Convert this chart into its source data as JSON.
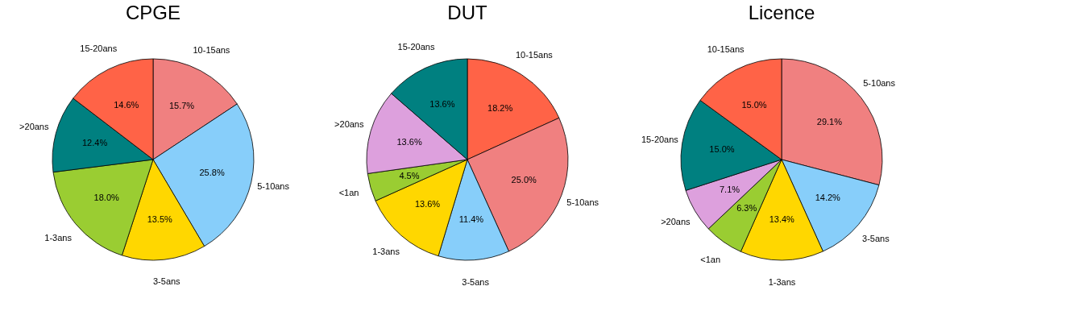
{
  "chart_data": [
    {
      "type": "pie",
      "title": "CPGE",
      "categories": [
        "10-15ans",
        "5-10ans",
        "3-5ans",
        "1-3ans",
        ">20ans",
        "15-20ans"
      ],
      "values": [
        15.7,
        25.8,
        13.5,
        18.0,
        12.4,
        14.6
      ],
      "colors": [
        "#f08080",
        "#87cefa",
        "#ffd700",
        "#9acd32",
        "#008080",
        "#ff6347"
      ],
      "value_labels": [
        "15.7%",
        "25.8%",
        "13.5%",
        "18.0%",
        "12.4%",
        "14.6%"
      ]
    },
    {
      "type": "pie",
      "title": "DUT",
      "categories": [
        "10-15ans",
        "5-10ans",
        "3-5ans",
        "1-3ans",
        "<1an",
        ">20ans",
        "15-20ans"
      ],
      "values": [
        18.2,
        25.0,
        11.4,
        13.6,
        4.5,
        13.6,
        13.6
      ],
      "colors": [
        "#ff6347",
        "#f08080",
        "#87cefa",
        "#ffd700",
        "#9acd32",
        "#dda0dd",
        "#008080"
      ],
      "value_labels": [
        "18.2%",
        "25.0%",
        "11.4%",
        "13.6%",
        "4.5%",
        "13.6%",
        "13.6%"
      ]
    },
    {
      "type": "pie",
      "title": "Licence",
      "categories": [
        "5-10ans",
        "3-5ans",
        "1-3ans",
        "<1an",
        ">20ans",
        "15-20ans",
        "10-15ans"
      ],
      "values": [
        29.1,
        14.2,
        13.4,
        6.3,
        7.1,
        15.0,
        15.0
      ],
      "colors": [
        "#f08080",
        "#87cefa",
        "#ffd700",
        "#9acd32",
        "#dda0dd",
        "#008080",
        "#ff6347"
      ],
      "value_labels": [
        "29.1%",
        "14.2%",
        "13.4%",
        "6.3%",
        "7.1%",
        "15.0%",
        "15.0%"
      ]
    }
  ]
}
